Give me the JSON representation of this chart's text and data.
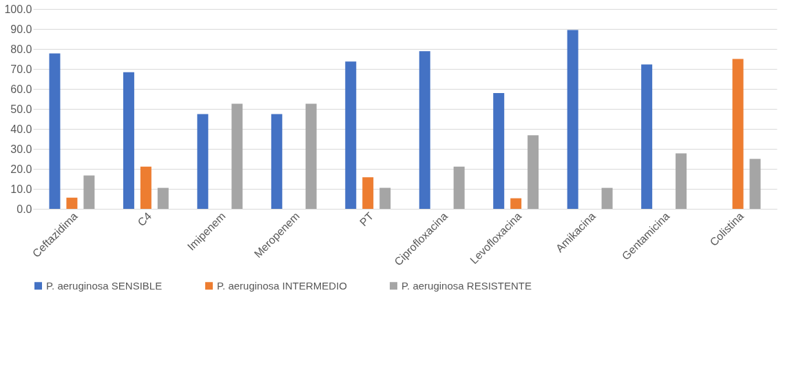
{
  "chart_data": {
    "type": "bar",
    "categories": [
      "Ceftazidima",
      "C4",
      "Imipenem",
      "Meropenem",
      "PT",
      "Ciprofloxacina",
      "Levofloxacina",
      "Amikacina",
      "Gentamicina",
      "Colistina"
    ],
    "series": [
      {
        "name": "P. aeruginosa SENSIBLE",
        "color": "#4472c4",
        "values": [
          77.8,
          68.4,
          47.4,
          47.4,
          73.7,
          78.9,
          57.9,
          89.5,
          72.2,
          0
        ]
      },
      {
        "name": "P. aeruginosa INTERMEDIO",
        "color": "#ed7d31",
        "values": [
          5.6,
          21.1,
          0,
          0,
          15.8,
          0,
          5.3,
          0,
          0,
          75.0
        ]
      },
      {
        "name": "P. aeruginosa RESISTENTE",
        "color": "#a5a5a5",
        "values": [
          16.7,
          10.5,
          52.6,
          52.6,
          10.5,
          21.1,
          36.8,
          10.5,
          27.8,
          25.0
        ]
      }
    ],
    "ylim": [
      0,
      100
    ],
    "yticks": [
      {
        "value": 0,
        "label": "0.0"
      },
      {
        "value": 10,
        "label": "10.0"
      },
      {
        "value": 20,
        "label": "20.0"
      },
      {
        "value": 30,
        "label": "30.0"
      },
      {
        "value": 40,
        "label": "40.0"
      },
      {
        "value": 50,
        "label": "50.0"
      },
      {
        "value": 60,
        "label": "60.0"
      },
      {
        "value": 70,
        "label": "70.0"
      },
      {
        "value": 80,
        "label": "80.0"
      },
      {
        "value": 90,
        "label": "90.0"
      },
      {
        "value": 100,
        "label": "100.0"
      }
    ],
    "grid": "y",
    "legend": "bottom"
  }
}
